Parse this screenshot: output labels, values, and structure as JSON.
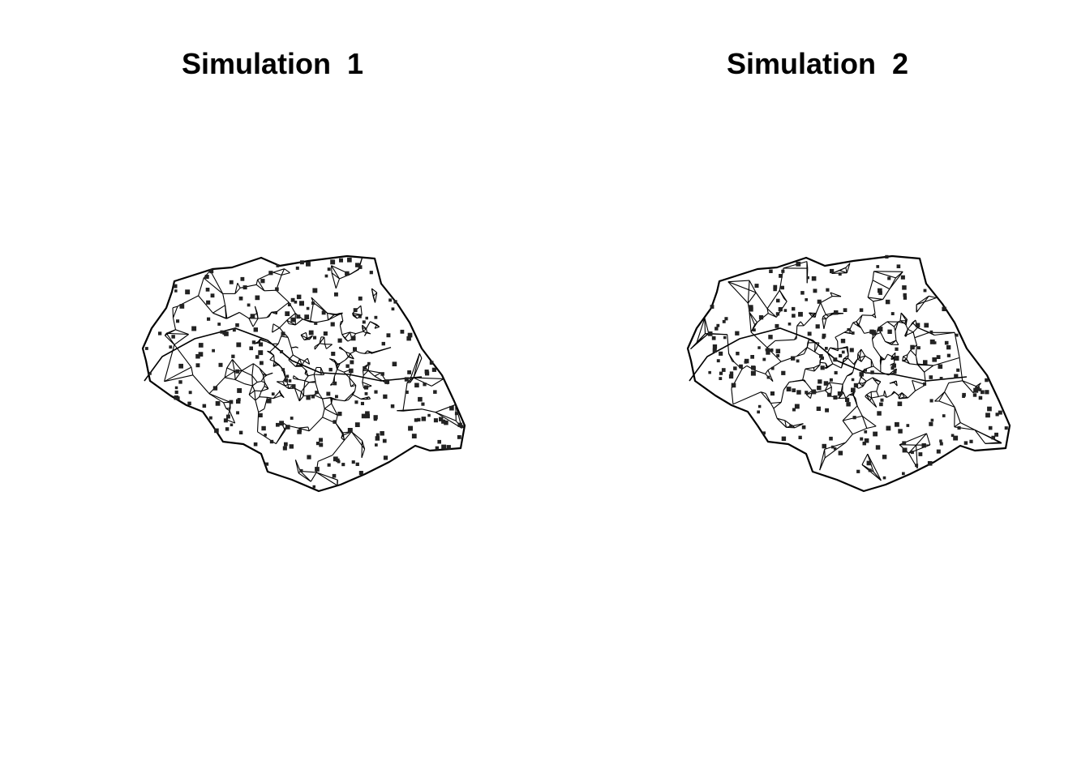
{
  "panels": [
    {
      "title": "Simulation  1"
    },
    {
      "title": "Simulation  2"
    }
  ],
  "colors": {
    "background": "#ffffff",
    "network": "#000000",
    "points": "#222222"
  }
}
